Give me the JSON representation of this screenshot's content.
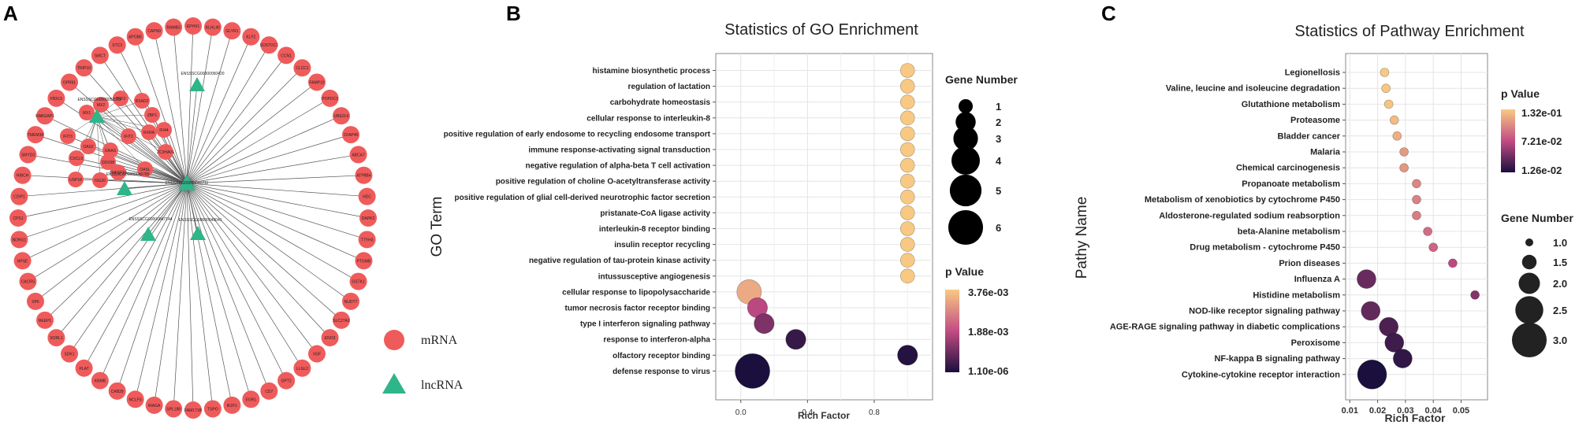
{
  "panels": {
    "a": "A",
    "b": "B",
    "c": "C"
  },
  "network": {
    "hub": "ENSSSCG00000040711",
    "lncRNAs": [
      "ENSSSCG00000052913",
      "ENSSSCG00000050420",
      "ENSSSCG00000046785",
      "ENSSSCG00000047144",
      "ENSSSCG00000049041"
    ],
    "outer_mrnas": [
      "EPHX1",
      "KLHL40",
      "GLYR1",
      "KLF2",
      "SOSTDC1",
      "CCN1",
      "CLCC1",
      "FAMP10",
      "POPDC3",
      "UBE2L6",
      "CFAP45",
      "ABCA7",
      "ATP8B4",
      "HDC",
      "DAPK2",
      "TTYH3",
      "PTGMB",
      "GSTK1",
      "NUDT7",
      "SLC27A2",
      "ENO3",
      "VGF",
      "LLGL2",
      "GPT2",
      "CD7",
      "EGR1",
      "IKZF1",
      "TSPO",
      "FAM171B",
      "SPL188",
      "IRAGA",
      "NCLFS",
      "CAB39",
      "KBMB",
      "PLAT",
      "SDK1",
      "SORL1",
      "REEP1",
      "SP6",
      "CACRS",
      "HPSE",
      "NDRG1",
      "CPS1",
      "CDIP1",
      "HIBCH",
      "SMYD3",
      "TMEM38",
      "RABGAP1",
      "FBXL5",
      "GPR61",
      "TRIP10",
      "SMCT",
      "STC3",
      "APOBE",
      "CAPN9",
      "RAMB3"
    ],
    "inner_mrnas": [
      "MX2",
      "TNF2",
      "RSAD2",
      "ZBP1",
      "IFI44",
      "ZC3HAV1",
      "OASL",
      "TNFSF10",
      "OAS2",
      "MX1",
      "IFIT3",
      "USP18",
      "ISG20",
      "GNAS",
      "CXCL9",
      "RXRA",
      "IFIT2",
      "DDX58"
    ],
    "legend": {
      "mrna": "mRNA",
      "lncrna": "lncRNA"
    },
    "colors": {
      "mrna": "#ef5b5b",
      "lncrna": "#2fb58a",
      "edge": "#555555"
    }
  },
  "chart_data": [
    {
      "type": "scatter",
      "title": "Statistics of GO Enrichment",
      "xlabel": "Rich Factor",
      "ylabel": "GO Term",
      "xlim": [
        -0.15,
        1.15
      ],
      "xticks": [
        0.0,
        0.4,
        0.8
      ],
      "xtick_labels": [
        "0.0",
        "0.4",
        "0.8"
      ],
      "categories": [
        "histamine biosynthetic process",
        "regulation of lactation",
        "carbohydrate homeostasis",
        "cellular response to interleukin-8",
        "positive regulation of early endosome to recycling endosome transport",
        "immune response-activating signal transduction",
        "negative regulation of alpha-beta T cell activation",
        "positive regulation of choline O-acetyltransferase activity",
        "positive regulation of glial cell-derived neurotrophic factor secretion",
        "pristanate-CoA ligase activity",
        "interleukin-8 receptor binding",
        "insulin receptor recycling",
        "negative regulation of tau-protein kinase activity",
        "intussusceptive angiogenesis",
        "cellular response to lipopolysaccharide",
        "tumor necrosis factor receptor binding",
        "type I interferon signaling pathway",
        "response to interferon-alpha",
        "olfactory receptor binding",
        "defense response to virus"
      ],
      "rich_factor": [
        1.0,
        1.0,
        1.0,
        1.0,
        1.0,
        1.0,
        1.0,
        1.0,
        1.0,
        1.0,
        1.0,
        1.0,
        1.0,
        1.0,
        0.05,
        0.1,
        0.14,
        0.33,
        1.0,
        0.07
      ],
      "gene_number": [
        1,
        1,
        1,
        1,
        1,
        1,
        1,
        1,
        1,
        1,
        1,
        1,
        1,
        1,
        3,
        2,
        2,
        2,
        2,
        6
      ],
      "p_value": [
        0.00376,
        0.00376,
        0.00376,
        0.00376,
        0.00376,
        0.00376,
        0.00376,
        0.00376,
        0.00376,
        0.00376,
        0.00376,
        0.00376,
        0.00376,
        0.00376,
        0.0033,
        0.0018,
        0.0011,
        0.0003,
        0.0001,
        1.1e-06
      ],
      "size_legend": {
        "title": "Gene Number",
        "values": [
          1,
          2,
          3,
          4,
          5,
          6
        ],
        "labels": [
          "1",
          "2",
          "3",
          "4",
          "5",
          "6"
        ]
      },
      "color_legend": {
        "title": "p Value",
        "labels": [
          "3.76e-03",
          "1.88e-03",
          "1.10e-06"
        ],
        "values": [
          0.00376,
          0.00188,
          1.1e-06
        ]
      }
    },
    {
      "type": "scatter",
      "title": "Statistics of Pathway Enrichment",
      "xlabel": "Rich Factor",
      "ylabel": "Pathy Name",
      "xlim": [
        0.0085,
        0.0595
      ],
      "xticks": [
        0.01,
        0.02,
        0.03,
        0.04,
        0.05
      ],
      "xtick_labels": [
        "0.01",
        "0.02",
        "0.03",
        "0.04",
        "0.05"
      ],
      "categories": [
        "Legionellosis",
        "Valine, leucine and isoleucine degradation",
        "Glutathione metabolism",
        "Proteasome",
        "Bladder cancer",
        "Malaria",
        "Chemical carcinogenesis",
        "Propanoate metabolism",
        "Metabolism of xenobiotics by cytochrome P450",
        "Aldosterone-regulated sodium reabsorption",
        "beta-Alanine metabolism",
        "Drug metabolism - cytochrome P450",
        "Prion diseases",
        "Influenza A",
        "Histidine metabolism",
        "NOD-like receptor signaling pathway",
        "AGE-RAGE signaling pathway in diabetic complications",
        "Peroxisome",
        "NF-kappa B signaling pathway",
        "Cytokine-cytokine receptor interaction"
      ],
      "rich_factor": [
        0.0225,
        0.023,
        0.024,
        0.026,
        0.027,
        0.0295,
        0.0295,
        0.034,
        0.034,
        0.034,
        0.038,
        0.04,
        0.047,
        0.016,
        0.055,
        0.0175,
        0.024,
        0.026,
        0.029,
        0.018
      ],
      "gene_number": [
        1,
        1,
        1,
        1,
        1,
        1,
        1,
        1,
        1,
        1,
        1,
        1,
        1,
        2,
        1,
        2,
        2,
        2,
        2,
        3
      ],
      "p_value": [
        0.132,
        0.131,
        0.13,
        0.126,
        0.12,
        0.11,
        0.108,
        0.1,
        0.098,
        0.096,
        0.088,
        0.084,
        0.07,
        0.04,
        0.05,
        0.038,
        0.03,
        0.025,
        0.02,
        0.0126
      ],
      "size_legend": {
        "title": "Gene Number",
        "values": [
          1.0,
          1.5,
          2.0,
          2.5,
          3.0
        ],
        "labels": [
          "1.0",
          "1.5",
          "2.0",
          "2.5",
          "3.0"
        ]
      },
      "color_legend": {
        "title": "p Value",
        "labels": [
          "1.32e-01",
          "7.21e-02",
          "1.26e-02"
        ],
        "values": [
          0.132,
          0.0721,
          0.0126
        ]
      }
    }
  ]
}
